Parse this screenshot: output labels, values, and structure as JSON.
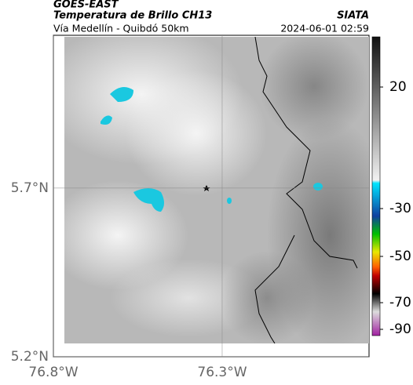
{
  "header": {
    "title": "GOES-EAST",
    "subtitle": "Temperatura de Brillo CH13",
    "region": "Vía Medellín - Quibdó 50km",
    "source": "SIATA",
    "datetime": "2024-06-01 02:59"
  },
  "map": {
    "xlim": [
      -76.8,
      -75.865
    ],
    "ylim": [
      5.2,
      6.153
    ],
    "xticks": [
      {
        "value": -76.8,
        "label": "76.8°W"
      },
      {
        "value": -76.3,
        "label": "76.3°W"
      }
    ],
    "yticks": [
      {
        "value": 5.7,
        "label": "5.7°N"
      },
      {
        "value": 5.2,
        "label": "5.2°N"
      }
    ],
    "grid": true
  },
  "colorbar": {
    "ticks": [
      20,
      -30,
      -50,
      -70,
      -90
    ]
  }
}
